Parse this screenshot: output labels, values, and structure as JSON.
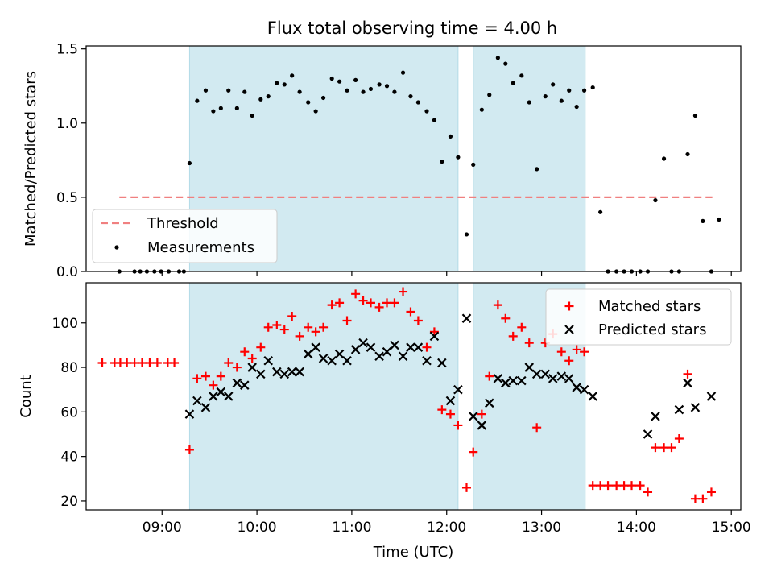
{
  "title": "Flux total observing time = 4.00 h",
  "colors": {
    "shade": "#add8e6",
    "threshold": "#f08080",
    "matched": "#ff0000",
    "predicted": "#000000",
    "measure": "#000000"
  },
  "chart_data": [
    {
      "type": "scatter",
      "panel": "top",
      "title": "Flux total observing time = 4.00 h",
      "xlabel": "",
      "ylabel": "Matched/Predicted stars",
      "xlim": [
        8.2,
        15.1
      ],
      "ylim": [
        0,
        1.52
      ],
      "yticks": [
        0,
        0.5,
        1.0,
        1.5
      ],
      "ytick_labels": [
        "0.0",
        "0.5",
        "1.0",
        "1.5"
      ],
      "shaded_regions": [
        [
          9.29,
          12.12
        ],
        [
          12.28,
          13.46
        ]
      ],
      "threshold": {
        "label": "Threshold",
        "y": 0.5,
        "x_start": 8.55,
        "x_end": 14.8
      },
      "legend": {
        "placement": "lower-left",
        "entries": [
          "Threshold",
          "Measurements"
        ]
      },
      "series": [
        {
          "name": "Measurements",
          "marker": "dot",
          "points": [
            [
              8.55,
              0
            ],
            [
              8.71,
              0
            ],
            [
              8.77,
              0
            ],
            [
              8.84,
              0
            ],
            [
              8.92,
              0
            ],
            [
              8.99,
              0
            ],
            [
              9.07,
              0
            ],
            [
              9.18,
              0
            ],
            [
              9.23,
              0
            ],
            [
              9.29,
              0.73
            ],
            [
              9.37,
              1.15
            ],
            [
              9.46,
              1.22
            ],
            [
              9.54,
              1.08
            ],
            [
              9.62,
              1.1
            ],
            [
              9.7,
              1.22
            ],
            [
              9.79,
              1.1
            ],
            [
              9.87,
              1.21
            ],
            [
              9.95,
              1.05
            ],
            [
              10.04,
              1.16
            ],
            [
              10.12,
              1.18
            ],
            [
              10.21,
              1.27
            ],
            [
              10.29,
              1.26
            ],
            [
              10.37,
              1.32
            ],
            [
              10.45,
              1.21
            ],
            [
              10.54,
              1.14
            ],
            [
              10.62,
              1.08
            ],
            [
              10.7,
              1.17
            ],
            [
              10.79,
              1.3
            ],
            [
              10.87,
              1.28
            ],
            [
              10.95,
              1.22
            ],
            [
              11.04,
              1.29
            ],
            [
              11.12,
              1.21
            ],
            [
              11.2,
              1.23
            ],
            [
              11.29,
              1.26
            ],
            [
              11.37,
              1.25
            ],
            [
              11.45,
              1.21
            ],
            [
              11.54,
              1.34
            ],
            [
              11.62,
              1.18
            ],
            [
              11.7,
              1.14
            ],
            [
              11.79,
              1.08
            ],
            [
              11.87,
              1.02
            ],
            [
              11.95,
              0.74
            ],
            [
              12.04,
              0.91
            ],
            [
              12.12,
              0.77
            ],
            [
              12.21,
              0.25
            ],
            [
              12.28,
              0.72
            ],
            [
              12.37,
              1.09
            ],
            [
              12.45,
              1.19
            ],
            [
              12.54,
              1.44
            ],
            [
              12.62,
              1.4
            ],
            [
              12.7,
              1.27
            ],
            [
              12.79,
              1.32
            ],
            [
              12.87,
              1.14
            ],
            [
              12.95,
              0.69
            ],
            [
              13.04,
              1.18
            ],
            [
              13.12,
              1.26
            ],
            [
              13.21,
              1.15
            ],
            [
              13.29,
              1.22
            ],
            [
              13.37,
              1.11
            ],
            [
              13.45,
              1.22
            ],
            [
              13.54,
              1.24
            ],
            [
              13.62,
              0.4
            ],
            [
              13.7,
              0
            ],
            [
              13.79,
              0
            ],
            [
              13.87,
              0
            ],
            [
              13.95,
              0
            ],
            [
              14.04,
              0
            ],
            [
              14.12,
              0
            ],
            [
              14.2,
              0.48
            ],
            [
              14.29,
              0.76
            ],
            [
              14.37,
              0
            ],
            [
              14.45,
              0
            ],
            [
              14.54,
              0.79
            ],
            [
              14.62,
              1.05
            ],
            [
              14.7,
              0.34
            ],
            [
              14.79,
              0
            ],
            [
              14.87,
              0.35
            ]
          ]
        }
      ]
    },
    {
      "type": "scatter",
      "panel": "bottom",
      "xlabel": "Time (UTC)",
      "ylabel": "Count",
      "xlim": [
        8.2,
        15.1
      ],
      "ylim": [
        16,
        118
      ],
      "xticks": [
        9,
        10,
        11,
        12,
        13,
        14,
        15
      ],
      "xtick_labels": [
        "09:00",
        "10:00",
        "11:00",
        "12:00",
        "13:00",
        "14:00",
        "15:00"
      ],
      "yticks": [
        20,
        40,
        60,
        80,
        100
      ],
      "ytick_labels": [
        "20",
        "40",
        "60",
        "80",
        "100"
      ],
      "shaded_regions": [
        [
          9.29,
          12.12
        ],
        [
          12.28,
          13.46
        ]
      ],
      "legend": {
        "placement": "top-right",
        "entries": [
          "Matched stars",
          "Predicted stars"
        ]
      },
      "series": [
        {
          "name": "Matched stars",
          "marker": "plus",
          "points": [
            [
              8.37,
              82
            ],
            [
              8.5,
              82
            ],
            [
              8.56,
              82
            ],
            [
              8.63,
              82
            ],
            [
              8.71,
              82
            ],
            [
              8.79,
              82
            ],
            [
              8.87,
              82
            ],
            [
              8.95,
              82
            ],
            [
              9.06,
              82
            ],
            [
              9.13,
              82
            ],
            [
              9.29,
              43
            ],
            [
              9.37,
              75
            ],
            [
              9.46,
              76
            ],
            [
              9.54,
              72
            ],
            [
              9.62,
              76
            ],
            [
              9.7,
              82
            ],
            [
              9.79,
              80
            ],
            [
              9.87,
              87
            ],
            [
              9.95,
              84
            ],
            [
              10.04,
              89
            ],
            [
              10.12,
              98
            ],
            [
              10.21,
              99
            ],
            [
              10.29,
              97
            ],
            [
              10.37,
              103
            ],
            [
              10.45,
              94
            ],
            [
              10.54,
              98
            ],
            [
              10.62,
              96
            ],
            [
              10.7,
              98
            ],
            [
              10.79,
              108
            ],
            [
              10.87,
              109
            ],
            [
              10.95,
              101
            ],
            [
              11.04,
              113
            ],
            [
              11.12,
              110
            ],
            [
              11.2,
              109
            ],
            [
              11.29,
              107
            ],
            [
              11.37,
              109
            ],
            [
              11.45,
              109
            ],
            [
              11.54,
              114
            ],
            [
              11.62,
              105
            ],
            [
              11.7,
              101
            ],
            [
              11.79,
              89
            ],
            [
              11.87,
              96
            ],
            [
              11.95,
              61
            ],
            [
              12.04,
              59
            ],
            [
              12.12,
              54
            ],
            [
              12.21,
              26
            ],
            [
              12.28,
              42
            ],
            [
              12.37,
              59
            ],
            [
              12.45,
              76
            ],
            [
              12.54,
              108
            ],
            [
              12.62,
              102
            ],
            [
              12.7,
              94
            ],
            [
              12.79,
              98
            ],
            [
              12.87,
              91
            ],
            [
              12.95,
              53
            ],
            [
              13.04,
              91
            ],
            [
              13.12,
              95
            ],
            [
              13.21,
              87
            ],
            [
              13.29,
              83
            ],
            [
              13.37,
              88
            ],
            [
              13.45,
              87
            ],
            [
              13.54,
              27
            ],
            [
              13.62,
              27
            ],
            [
              13.7,
              27
            ],
            [
              13.79,
              27
            ],
            [
              13.87,
              27
            ],
            [
              13.95,
              27
            ],
            [
              14.04,
              27
            ],
            [
              14.12,
              24
            ],
            [
              14.2,
              44
            ],
            [
              14.29,
              44
            ],
            [
              14.37,
              44
            ],
            [
              14.45,
              48
            ],
            [
              14.54,
              77
            ],
            [
              14.62,
              21
            ],
            [
              14.7,
              21
            ],
            [
              14.79,
              24
            ]
          ]
        },
        {
          "name": "Predicted stars",
          "marker": "x",
          "points": [
            [
              9.29,
              59
            ],
            [
              9.37,
              65
            ],
            [
              9.46,
              62
            ],
            [
              9.54,
              67
            ],
            [
              9.62,
              69
            ],
            [
              9.7,
              67
            ],
            [
              9.79,
              73
            ],
            [
              9.87,
              72
            ],
            [
              9.95,
              80
            ],
            [
              10.04,
              77
            ],
            [
              10.12,
              83
            ],
            [
              10.21,
              78
            ],
            [
              10.29,
              77
            ],
            [
              10.37,
              78
            ],
            [
              10.45,
              78
            ],
            [
              10.54,
              86
            ],
            [
              10.62,
              89
            ],
            [
              10.7,
              84
            ],
            [
              10.79,
              83
            ],
            [
              10.87,
              86
            ],
            [
              10.95,
              83
            ],
            [
              11.04,
              88
            ],
            [
              11.12,
              91
            ],
            [
              11.2,
              89
            ],
            [
              11.29,
              85
            ],
            [
              11.37,
              87
            ],
            [
              11.45,
              90
            ],
            [
              11.54,
              85
            ],
            [
              11.62,
              89
            ],
            [
              11.7,
              89
            ],
            [
              11.79,
              83
            ],
            [
              11.87,
              94
            ],
            [
              11.95,
              82
            ],
            [
              12.04,
              65
            ],
            [
              12.12,
              70
            ],
            [
              12.21,
              102
            ],
            [
              12.28,
              58
            ],
            [
              12.37,
              54
            ],
            [
              12.45,
              64
            ],
            [
              12.54,
              75
            ],
            [
              12.62,
              73
            ],
            [
              12.7,
              74
            ],
            [
              12.79,
              74
            ],
            [
              12.87,
              80
            ],
            [
              12.95,
              77
            ],
            [
              13.04,
              77
            ],
            [
              13.12,
              75
            ],
            [
              13.21,
              76
            ],
            [
              13.29,
              75
            ],
            [
              13.37,
              71
            ],
            [
              13.45,
              70
            ],
            [
              13.54,
              67
            ],
            [
              14.12,
              50
            ],
            [
              14.2,
              58
            ],
            [
              14.45,
              61
            ],
            [
              14.54,
              73
            ],
            [
              14.62,
              62
            ],
            [
              14.79,
              67
            ]
          ]
        }
      ]
    }
  ]
}
